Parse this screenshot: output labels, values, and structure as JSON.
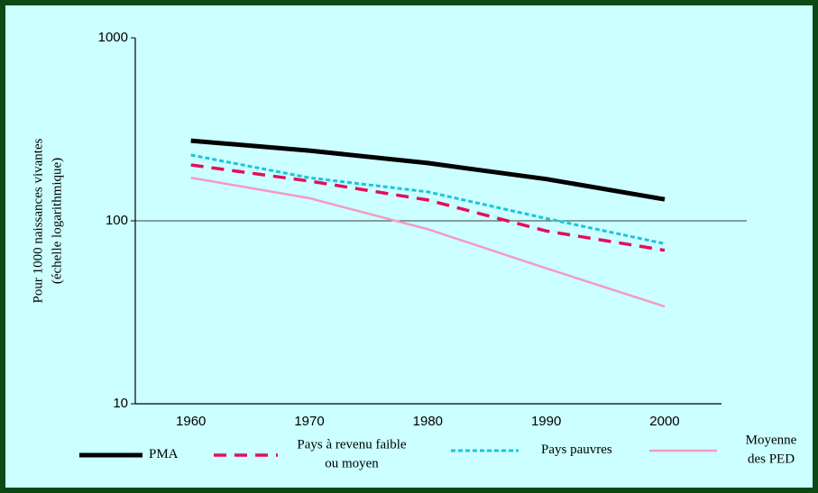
{
  "chart_data": {
    "type": "line",
    "ylabel": "Pour 1000 naissances vivantes\n(échelle logarithmique)",
    "x": [
      1960,
      1970,
      1980,
      1990,
      2000
    ],
    "xlim": [
      1955.3,
      2004.8
    ],
    "xticks": [
      1960,
      1970,
      1980,
      1990,
      2000
    ],
    "ylim": [
      10,
      1000
    ],
    "yticks": [
      10,
      100,
      1000
    ],
    "ylog": true,
    "grid": true,
    "series": [
      {
        "name": "PMA",
        "color": "#000000",
        "dash": "solid",
        "values": [
          274,
          242,
          207,
          169,
          131
        ]
      },
      {
        "name": "Pays à revenu faible\nou moyen",
        "color": "#e0105a",
        "dash": "dashed",
        "values": [
          202,
          165,
          130,
          88,
          69
        ]
      },
      {
        "name": "Pays pauvres",
        "color": "#1cc4dc",
        "dash": "dotted",
        "values": [
          229,
          172,
          144,
          103,
          75
        ]
      },
      {
        "name": "Moyenne\ndes PED",
        "color": "#f39bc0",
        "dash": "solid",
        "values": [
          172,
          133,
          90,
          55,
          34
        ]
      }
    ]
  }
}
